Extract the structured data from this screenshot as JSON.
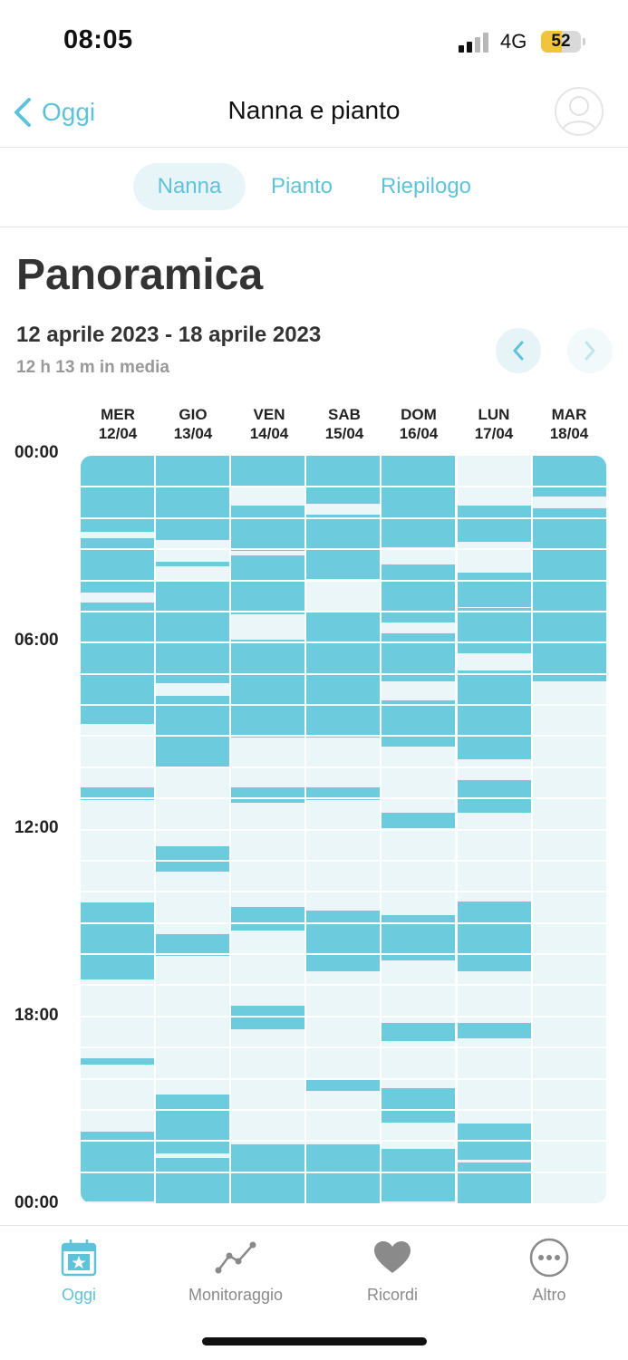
{
  "status_bar": {
    "time": "08:05",
    "network": "4G",
    "battery": "52"
  },
  "nav": {
    "back_label": "Oggi",
    "title": "Nanna e pianto"
  },
  "tabs": [
    {
      "label": "Nanna",
      "active": true
    },
    {
      "label": "Pianto",
      "active": false
    },
    {
      "label": "Riepilogo",
      "active": false
    }
  ],
  "overview": {
    "heading": "Panoramica",
    "date_range": "12 aprile 2023 - 18 aprile 2023",
    "average": "12 h 13 m in media"
  },
  "chart_data": {
    "type": "timeline",
    "days": [
      {
        "weekday": "MER",
        "date": "12/04"
      },
      {
        "weekday": "GIO",
        "date": "13/04"
      },
      {
        "weekday": "VEN",
        "date": "14/04"
      },
      {
        "weekday": "SAB",
        "date": "15/04"
      },
      {
        "weekday": "DOM",
        "date": "16/04"
      },
      {
        "weekday": "LUN",
        "date": "17/04"
      },
      {
        "weekday": "MAR",
        "date": "18/04"
      }
    ],
    "y_labels": [
      "00:00",
      "06:00",
      "12:00",
      "18:00",
      "00:00"
    ],
    "y_range_hours": [
      0,
      24
    ],
    "colors": {
      "sleep": "#6ccbdd",
      "empty": "#ebf6f8"
    },
    "sleep_hours": [
      [
        [
          0,
          2.45
        ],
        [
          2.65,
          4.4
        ],
        [
          4.7,
          8.6
        ],
        [
          10.65,
          11.05
        ],
        [
          14.35,
          16.8
        ],
        [
          19.35,
          19.55
        ],
        [
          21.7,
          23.95
        ]
      ],
      [
        [
          0,
          2.7
        ],
        [
          3.4,
          3.55
        ],
        [
          4,
          7.3
        ],
        [
          7.7,
          10.05
        ],
        [
          12.55,
          13.35
        ],
        [
          15.35,
          16.05
        ],
        [
          20.5,
          22.4
        ],
        [
          22.55,
          24
        ]
      ],
      [
        [
          0,
          1
        ],
        [
          1.6,
          3.05
        ],
        [
          3.2,
          5.1
        ],
        [
          5.9,
          9.05
        ],
        [
          10.65,
          11.15
        ],
        [
          14.5,
          15.25
        ],
        [
          17.65,
          18.4
        ],
        [
          22.1,
          24
        ]
      ],
      [
        [
          0,
          1.55
        ],
        [
          1.9,
          3.95
        ],
        [
          5,
          9.05
        ],
        [
          10.65,
          11.05
        ],
        [
          14.6,
          16.55
        ],
        [
          20.05,
          20.4
        ],
        [
          22.1,
          24
        ]
      ],
      [
        [
          0,
          2.95
        ],
        [
          3.5,
          5.35
        ],
        [
          5.7,
          7.25
        ],
        [
          7.85,
          9.35
        ],
        [
          11.45,
          11.95
        ],
        [
          14.75,
          16.2
        ],
        [
          18.2,
          18.8
        ],
        [
          20.3,
          21.4
        ],
        [
          22.25,
          23.95
        ]
      ],
      [
        [
          1.6,
          2.75
        ],
        [
          3.75,
          4.85
        ],
        [
          4.9,
          6.35
        ],
        [
          6.9,
          9.75
        ],
        [
          10.4,
          11.45
        ],
        [
          14.3,
          16.55
        ],
        [
          18.2,
          18.7
        ],
        [
          21.45,
          22.6
        ],
        [
          22.7,
          24
        ]
      ],
      [
        [
          0,
          1.3
        ],
        [
          1.7,
          7.25
        ]
      ]
    ]
  },
  "tab_bar": [
    {
      "label": "Oggi",
      "icon": "calendar-star-icon",
      "active": true
    },
    {
      "label": "Monitoraggio",
      "icon": "trend-line-icon",
      "active": false
    },
    {
      "label": "Ricordi",
      "icon": "heart-icon",
      "active": false
    },
    {
      "label": "Altro",
      "icon": "more-dots-icon",
      "active": false
    }
  ]
}
